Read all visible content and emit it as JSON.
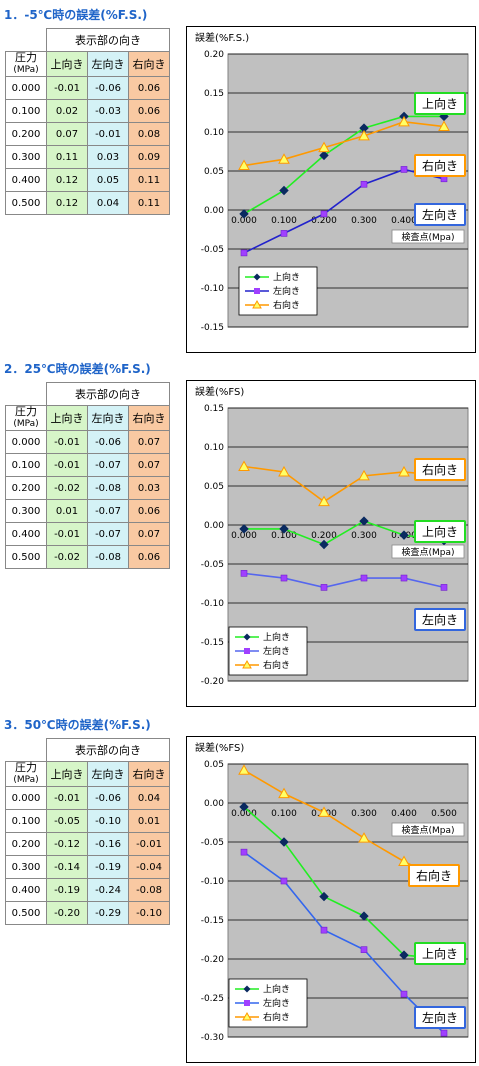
{
  "sections": [
    {
      "title": "1．-5℃時の誤差(%F.S.)",
      "table": {
        "group_header": "表示部の向き",
        "pressure_label": "圧力",
        "pressure_unit": "(MPa)",
        "columns": [
          "上向き",
          "左向き",
          "右向き"
        ],
        "rows": [
          [
            "0.000",
            "-0.01",
            "-0.06",
            "0.06"
          ],
          [
            "0.100",
            "0.02",
            "-0.03",
            "0.06"
          ],
          [
            "0.200",
            "0.07",
            "-0.01",
            "0.08"
          ],
          [
            "0.300",
            "0.11",
            "0.03",
            "0.09"
          ],
          [
            "0.400",
            "0.12",
            "0.05",
            "0.11"
          ],
          [
            "0.500",
            "0.12",
            "0.04",
            "0.11"
          ]
        ]
      }
    },
    {
      "title": "2．25℃時の誤差(%F.S.)",
      "table": {
        "group_header": "表示部の向き",
        "pressure_label": "圧力",
        "pressure_unit": "(MPa)",
        "columns": [
          "上向き",
          "左向き",
          "右向き"
        ],
        "rows": [
          [
            "0.000",
            "-0.01",
            "-0.06",
            "0.07"
          ],
          [
            "0.100",
            "-0.01",
            "-0.07",
            "0.07"
          ],
          [
            "0.200",
            "-0.02",
            "-0.08",
            "0.03"
          ],
          [
            "0.300",
            "0.01",
            "-0.07",
            "0.06"
          ],
          [
            "0.400",
            "-0.01",
            "-0.07",
            "0.07"
          ],
          [
            "0.500",
            "-0.02",
            "-0.08",
            "0.06"
          ]
        ]
      }
    },
    {
      "title": "3．50℃時の誤差(%F.S.)",
      "table": {
        "group_header": "表示部の向き",
        "pressure_label": "圧力",
        "pressure_unit": "(MPa)",
        "columns": [
          "上向き",
          "左向き",
          "右向き"
        ],
        "rows": [
          [
            "0.000",
            "-0.01",
            "-0.06",
            "0.04"
          ],
          [
            "0.100",
            "-0.05",
            "-0.10",
            "0.01"
          ],
          [
            "0.200",
            "-0.12",
            "-0.16",
            "-0.01"
          ],
          [
            "0.300",
            "-0.14",
            "-0.19",
            "-0.04"
          ],
          [
            "0.400",
            "-0.19",
            "-0.24",
            "-0.08"
          ],
          [
            "0.500",
            "-0.20",
            "-0.29",
            "-0.10"
          ]
        ]
      }
    }
  ],
  "chart_data": [
    {
      "type": "line",
      "ylabel": "誤差(%F.S.)",
      "xlabel": "検査点(Mpa)",
      "ylim": [
        -0.15,
        0.2
      ],
      "ytick_step": 0.05,
      "yticks": [
        "0.20",
        "0.15",
        "0.10",
        "0.05",
        "0.00",
        "-0.05",
        "-0.10",
        "-0.15"
      ],
      "x": [
        "0.000",
        "0.100",
        "0.200",
        "0.300",
        "0.400",
        "0.500"
      ],
      "grid": true,
      "legend": "bottom-left",
      "series": [
        {
          "name": "上向き",
          "color": "#22ee22",
          "marker": "diamond",
          "values": [
            -0.005,
            0.025,
            0.07,
            0.105,
            0.12,
            0.12
          ],
          "label": "上向き",
          "label_color": "#22dd22"
        },
        {
          "name": "左向き",
          "color": "#2222cc",
          "marker": "square",
          "values": [
            -0.055,
            -0.03,
            -0.005,
            0.033,
            0.052,
            0.04
          ],
          "label": "左向き",
          "label_color": "#3366dd"
        },
        {
          "name": "右向き",
          "color": "#ff9900",
          "marker": "triangle",
          "values": [
            0.057,
            0.065,
            0.08,
            0.095,
            0.113,
            0.107
          ],
          "label": "右向き",
          "label_color": "#ff9900"
        }
      ]
    },
    {
      "type": "line",
      "ylabel": "誤差(%FS)",
      "xlabel": "検査点(Mpa)",
      "ylim": [
        -0.2,
        0.15
      ],
      "ytick_step": 0.05,
      "yticks": [
        "0.15",
        "0.10",
        "0.05",
        "0.00",
        "-0.05",
        "-0.10",
        "-0.15",
        "-0.20"
      ],
      "x": [
        "0.000",
        "0.100",
        "0.200",
        "0.300",
        "0.400",
        "0.500"
      ],
      "grid": true,
      "legend": "bottom-left",
      "series": [
        {
          "name": "上向き",
          "color": "#22ee22",
          "marker": "diamond",
          "values": [
            -0.005,
            -0.005,
            -0.025,
            0.005,
            -0.013,
            -0.02
          ],
          "label": "上向き",
          "label_color": "#22dd22"
        },
        {
          "name": "左向き",
          "color": "#5566ee",
          "marker": "square",
          "values": [
            -0.062,
            -0.068,
            -0.08,
            -0.068,
            -0.068,
            -0.08
          ],
          "label": "左向き",
          "label_color": "#3366dd"
        },
        {
          "name": "右向き",
          "color": "#ff9900",
          "marker": "triangle",
          "values": [
            0.075,
            0.068,
            0.03,
            0.063,
            0.068,
            0.063
          ],
          "label": "右向き",
          "label_color": "#ff9900"
        }
      ]
    },
    {
      "type": "line",
      "ylabel": "誤差(%FS)",
      "xlabel": "検査点(Mpa)",
      "ylim": [
        -0.3,
        0.05
      ],
      "ytick_step": 0.05,
      "yticks": [
        "0.05",
        "0.00",
        "-0.05",
        "-0.10",
        "-0.15",
        "-0.20",
        "-0.25",
        "-0.30"
      ],
      "x": [
        "0.000",
        "0.100",
        "0.200",
        "0.300",
        "0.400",
        "0.500"
      ],
      "grid": true,
      "legend": "bottom-left",
      "series": [
        {
          "name": "上向き",
          "color": "#22ee22",
          "marker": "diamond",
          "values": [
            -0.005,
            -0.05,
            -0.12,
            -0.145,
            -0.195,
            -0.2
          ],
          "label": "上向き",
          "label_color": "#22dd22"
        },
        {
          "name": "左向き",
          "color": "#3366ee",
          "marker": "square",
          "values": [
            -0.063,
            -0.1,
            -0.163,
            -0.188,
            -0.245,
            -0.295
          ],
          "label": "左向き",
          "label_color": "#3366dd"
        },
        {
          "name": "右向き",
          "color": "#ff9900",
          "marker": "triangle",
          "values": [
            0.042,
            0.012,
            -0.012,
            -0.045,
            -0.075,
            -0.1
          ],
          "label": "右向き",
          "label_color": "#ff9900"
        }
      ]
    }
  ]
}
